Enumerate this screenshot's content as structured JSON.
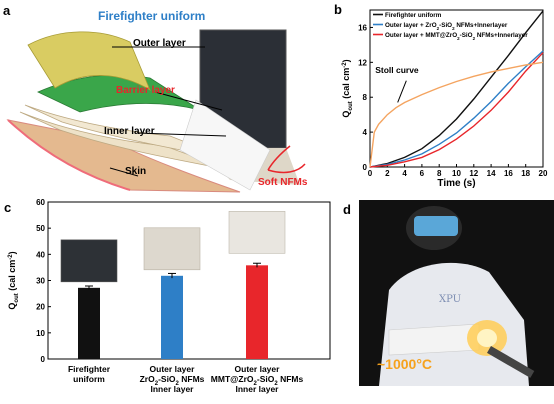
{
  "panels": {
    "a": {
      "letter": "a",
      "title": "Firefighter uniform",
      "labels": {
        "outer": "Outer layer",
        "barrier": "Barrier layer",
        "inner": "Inner layer",
        "skin": "Skin",
        "soft": "Soft NFMs"
      },
      "colors": {
        "title": "#2e7fc7",
        "barrier": "#e8262b",
        "soft": "#e8262b"
      }
    },
    "b": {
      "letter": "b"
    },
    "c": {
      "letter": "c"
    },
    "d": {
      "letter": "d",
      "temperature": "~1000°C",
      "sleeve_text": "XPU"
    }
  },
  "chart_data": [
    {
      "type": "line",
      "panel": "b",
      "xlabel": "Time (s)",
      "ylabel_main": "Q",
      "ylabel_sub": "out",
      "ylabel_unit": " (cal cm",
      "ylabel_sup": "-2",
      "ylabel_close": ")",
      "xlim": [
        0,
        20
      ],
      "ylim": [
        0,
        18
      ],
      "xticks": [
        0,
        2,
        4,
        6,
        8,
        10,
        12,
        14,
        16,
        18,
        20
      ],
      "yticks": [
        0,
        4,
        8,
        12,
        16
      ],
      "legend_position": "top-left",
      "legend": [
        {
          "pre": "Firefighter uniform",
          "color": "#111111"
        },
        {
          "pre": "Outer layer + ZrO",
          "sub1": "2",
          "mid": "-SiO",
          "sub2": "2",
          "post": " NFMs+Innerlayer",
          "color": "#2e7fc7"
        },
        {
          "pre": "Outer layer + MMT@ZrO",
          "sub1": "2",
          "mid": "-SiO",
          "sub2": "2",
          "post": " NFMs+Innerlayer",
          "color": "#e8262b"
        }
      ],
      "series": [
        {
          "color": "#111111",
          "x": [
            0,
            2,
            4,
            6,
            8,
            10,
            12,
            14,
            16,
            18,
            20
          ],
          "y": [
            0.0,
            0.4,
            1.1,
            2.1,
            3.6,
            5.5,
            7.8,
            10.3,
            12.8,
            15.4,
            17.9
          ]
        },
        {
          "color": "#2e7fc7",
          "x": [
            0,
            2,
            4,
            6,
            8,
            10,
            12,
            14,
            16,
            18,
            20
          ],
          "y": [
            0.0,
            0.3,
            0.8,
            1.5,
            2.6,
            3.9,
            5.6,
            7.5,
            9.6,
            11.5,
            13.3
          ]
        },
        {
          "color": "#e8262b",
          "x": [
            0,
            2,
            4,
            6,
            8,
            10,
            12,
            14,
            16,
            18,
            20
          ],
          "y": [
            0.0,
            0.2,
            0.6,
            1.1,
            2.0,
            3.2,
            4.7,
            6.5,
            8.6,
            11.0,
            13.1
          ]
        },
        {
          "color": "#f4a460",
          "x": [
            0,
            0.5,
            1,
            2,
            3,
            4,
            6,
            8,
            10,
            12,
            14,
            16,
            18,
            20
          ],
          "y": [
            0.0,
            4.0,
            4.9,
            6.0,
            6.8,
            7.4,
            8.3,
            9.1,
            9.8,
            10.4,
            10.9,
            11.3,
            11.7,
            12.0
          ]
        }
      ],
      "annotation": "Stoll curve"
    },
    {
      "type": "bar",
      "panel": "c",
      "ylim": [
        0,
        60
      ],
      "yticks": [
        0,
        10,
        20,
        30,
        40,
        50,
        60
      ],
      "ylabel_main": "Q",
      "ylabel_sub": "out",
      "ylabel_unit": " (cal cm",
      "ylabel_sup": "-2",
      "ylabel_close": ")",
      "bars": [
        {
          "value": 27.2,
          "err": 0.7,
          "color": "#111111",
          "label_lines": [
            "Firefighter",
            "uniform"
          ]
        },
        {
          "value": 31.8,
          "err": 0.9,
          "color": "#2e7fc7",
          "label_lines": [
            "Outer  layer",
            "ZrO2-SiO2 NFMs",
            "Inner layer"
          ]
        },
        {
          "value": 35.8,
          "err": 0.8,
          "color": "#e8262b",
          "label_lines": [
            "Outer  layer",
            "MMT@ZrO2-SiO2 NFMs",
            "Inner layer"
          ]
        }
      ]
    }
  ]
}
